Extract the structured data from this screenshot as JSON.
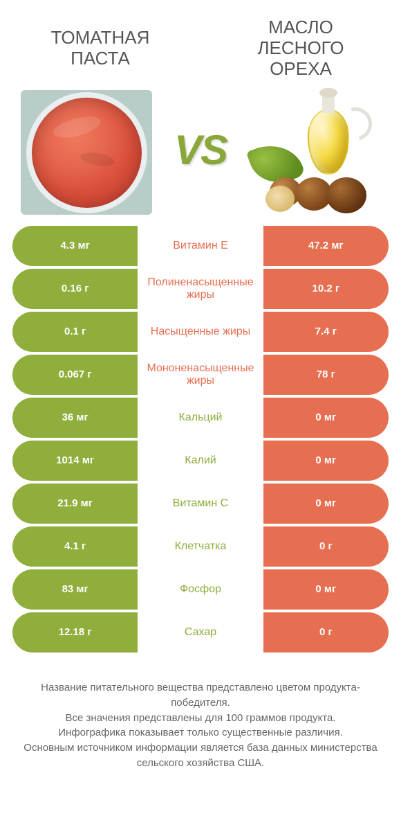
{
  "colors": {
    "green": "#8fae3c",
    "orange": "#e76f51",
    "mid_bg": "#ffffff",
    "mid_text_green": "#8fae3c",
    "mid_text_orange": "#e76f51"
  },
  "header": {
    "left": "ТОМАТНАЯ\nПАСТА",
    "right": "МАСЛО\nЛЕСНОГО\nОРЕХА",
    "vs": "VS"
  },
  "rows": [
    {
      "left": "4.3 мг",
      "mid": "Витамин Е",
      "right": "47.2 мг",
      "winner": "right"
    },
    {
      "left": "0.16 г",
      "mid": "Полиненасыщенные жиры",
      "right": "10.2 г",
      "winner": "right"
    },
    {
      "left": "0.1 г",
      "mid": "Насыщенные жиры",
      "right": "7.4 г",
      "winner": "right"
    },
    {
      "left": "0.067 г",
      "mid": "Мононенасыщенные жиры",
      "right": "78 г",
      "winner": "right"
    },
    {
      "left": "36 мг",
      "mid": "Кальций",
      "right": "0 мг",
      "winner": "left"
    },
    {
      "left": "1014 мг",
      "mid": "Калий",
      "right": "0 мг",
      "winner": "left"
    },
    {
      "left": "21.9 мг",
      "mid": "Витамин C",
      "right": "0 мг",
      "winner": "left"
    },
    {
      "left": "4.1 г",
      "mid": "Клетчатка",
      "right": "0 г",
      "winner": "left"
    },
    {
      "left": "83 мг",
      "mid": "Фосфор",
      "right": "0 мг",
      "winner": "left"
    },
    {
      "left": "12.18 г",
      "mid": "Сахар",
      "right": "0 г",
      "winner": "left"
    }
  ],
  "footer": [
    "Название питательного вещества представлено цветом продукта-победителя.",
    "Все значения представлены для 100 граммов продукта.",
    "Инфографика показывает только существенные различия.",
    "Основным источником информации является база данных министерства сельского хозяйства США."
  ]
}
